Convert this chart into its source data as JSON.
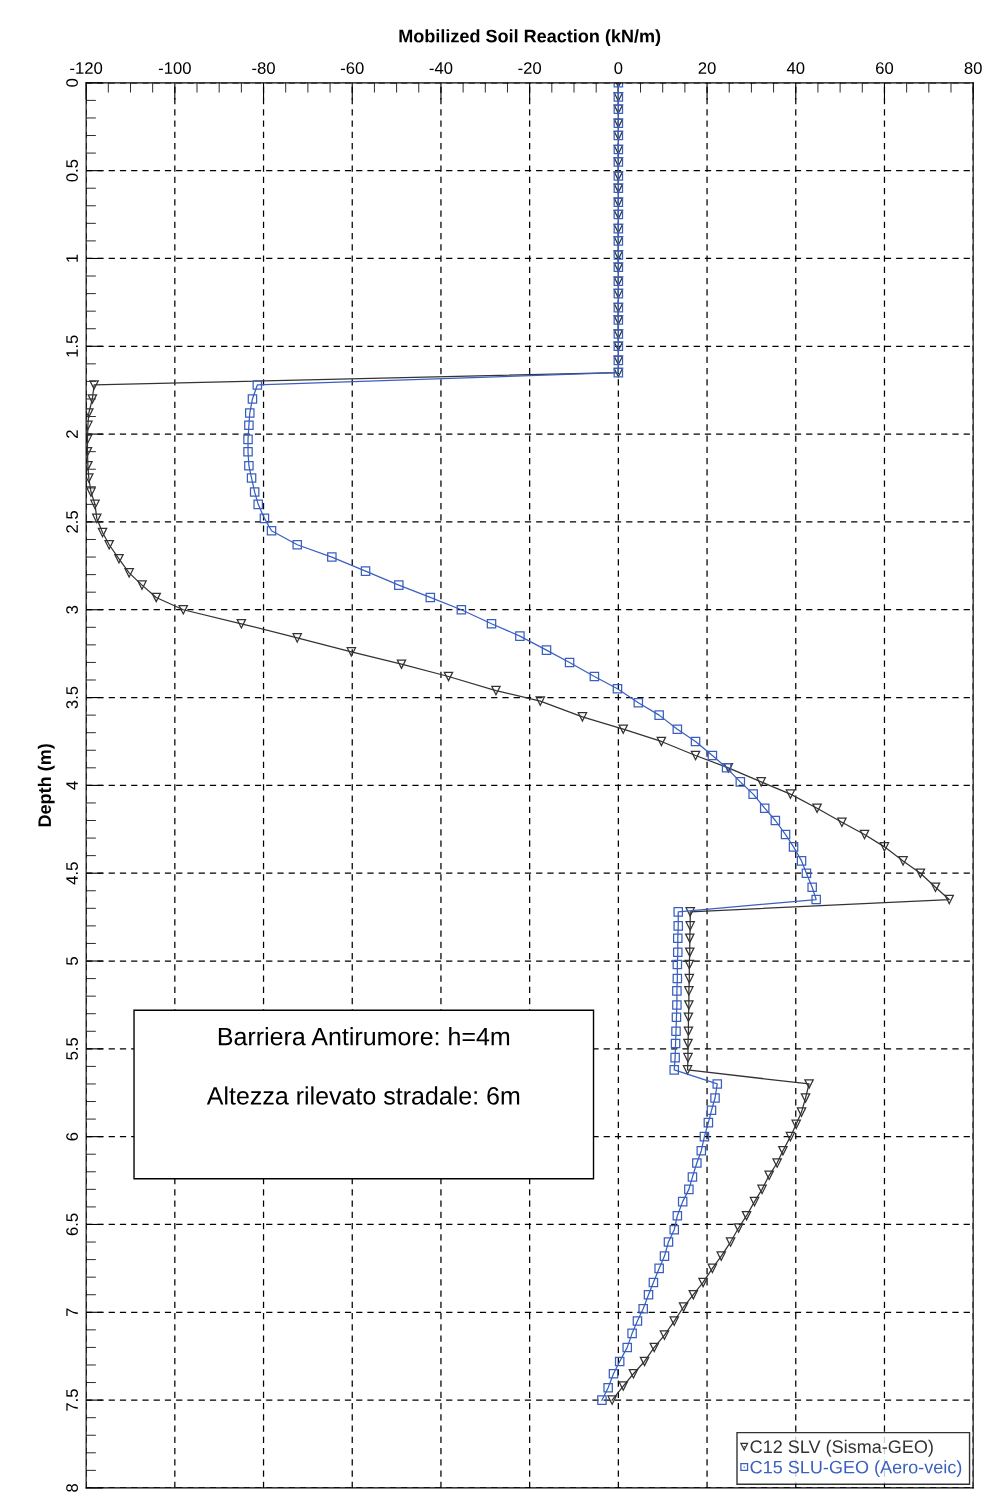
{
  "chart_data": {
    "type": "line",
    "xlabel": "Mobilized Soil Reaction (kN/m)",
    "ylabel": "Depth (m)",
    "xlim": [
      -120,
      80
    ],
    "xticks": [
      -120,
      -100,
      -80,
      -60,
      -40,
      -20,
      0,
      20,
      40,
      60,
      80
    ],
    "ylim": [
      8,
      0
    ],
    "yticks": [
      0,
      0.5,
      1,
      1.5,
      2,
      2.5,
      3,
      3.5,
      4,
      4.5,
      5,
      5.5,
      6,
      6.5,
      7,
      7.5,
      8
    ],
    "grid": true,
    "legend": "bottom right",
    "annotations": [
      "Barriera Antirumore: h=4m",
      "Altezza rilevato stradale: 6m"
    ],
    "series": [
      {
        "name": "C12 SLV (Sisma-GEO)",
        "color": "#333333",
        "marker": "triangle",
        "x": [
          0,
          0,
          0,
          0,
          0,
          0,
          0,
          0,
          0,
          0,
          0,
          0,
          0,
          0,
          0,
          0,
          0,
          0,
          0,
          0,
          0,
          0,
          0,
          -118.2,
          -118.6,
          -119.4,
          -119.6,
          -119.7,
          -119.7,
          -119.6,
          -119.4,
          -118.9,
          -118.0,
          -117.6,
          -116.3,
          -114.8,
          -112.6,
          -110.3,
          -107.4,
          -104.2,
          -98.1,
          -85,
          -72.4,
          -60.2,
          -48.9,
          -38.3,
          -27.6,
          -17.6,
          -8.1,
          1.1,
          9.7,
          17.4,
          24.8,
          32.2,
          38.8,
          44.8,
          50.4,
          55.5,
          60,
          64.2,
          68.1,
          71.5,
          74.6,
          16.2,
          16.2,
          16.1,
          16.1,
          16.0,
          16.0,
          15.9,
          15.9,
          15.8,
          15.8,
          15.7,
          15.7,
          15.6,
          43.0,
          42.2,
          41.3,
          40.1,
          38.8,
          37.1,
          35.8,
          34.0,
          32.4,
          30.7,
          28.9,
          27.1,
          25.3,
          23.2,
          21.2,
          19.1,
          16.9,
          14.7,
          12.6,
          10.4,
          8.1,
          5.9,
          3.4,
          1.1,
          -1.4
        ],
        "values": [
          0,
          0.08,
          0.15,
          0.23,
          0.3,
          0.38,
          0.45,
          0.53,
          0.6,
          0.68,
          0.75,
          0.83,
          0.9,
          0.98,
          1.05,
          1.13,
          1.2,
          1.28,
          1.35,
          1.43,
          1.5,
          1.58,
          1.65,
          1.72,
          1.8,
          1.88,
          1.95,
          2.03,
          2.1,
          2.18,
          2.25,
          2.33,
          2.4,
          2.48,
          2.56,
          2.63,
          2.71,
          2.79,
          2.86,
          2.93,
          3.0,
          3.08,
          3.16,
          3.24,
          3.31,
          3.38,
          3.46,
          3.52,
          3.61,
          3.68,
          3.75,
          3.83,
          3.9,
          3.98,
          4.05,
          4.13,
          4.21,
          4.28,
          4.35,
          4.43,
          4.5,
          4.58,
          4.65,
          4.72,
          4.8,
          4.87,
          4.95,
          5.02,
          5.1,
          5.17,
          5.25,
          5.32,
          5.4,
          5.47,
          5.55,
          5.62,
          5.7,
          5.78,
          5.86,
          5.93,
          6.0,
          6.08,
          6.15,
          6.22,
          6.3,
          6.37,
          6.45,
          6.52,
          6.6,
          6.68,
          6.75,
          6.83,
          6.9,
          6.97,
          7.05,
          7.13,
          7.2,
          7.28,
          7.35,
          7.42,
          7.5
        ]
      },
      {
        "name": "C15 SLU-GEO (Aero-veic)",
        "color": "#3a5fbf",
        "marker": "square",
        "x": [
          0,
          0,
          0,
          0,
          0,
          0,
          0,
          0,
          0,
          0,
          0,
          0,
          0,
          0,
          0,
          0,
          0,
          0,
          0,
          0,
          0,
          0,
          0,
          -81.4,
          -82.5,
          -83.1,
          -83.3,
          -83.5,
          -83.5,
          -83.3,
          -82.7,
          -82,
          -81.2,
          -79.8,
          -78.2,
          -72.4,
          -64.6,
          -57,
          -49.5,
          -42.4,
          -35.4,
          -28.6,
          -22.2,
          -16.2,
          -11.0,
          -5.4,
          -0.2,
          4.5,
          9.2,
          13.3,
          17.4,
          21.2,
          24.4,
          27.5,
          30.4,
          33.0,
          35.4,
          37.7,
          39.5,
          41.3,
          42.4,
          43.7,
          44.6,
          13.5,
          13.5,
          13.4,
          13.4,
          13.3,
          13.3,
          13.2,
          13.2,
          13.1,
          13.0,
          12.9,
          12.8,
          12.6,
          22.3,
          21.8,
          21.0,
          20.3,
          19.4,
          18.7,
          17.7,
          16.7,
          15.9,
          14.5,
          13.3,
          12.6,
          11.3,
          10.4,
          9.2,
          7.9,
          6.8,
          5.6,
          4.3,
          3.1,
          2.0,
          0.3,
          -1.1,
          -2.3,
          -3.7
        ],
        "values": [
          0,
          0.08,
          0.15,
          0.23,
          0.3,
          0.38,
          0.45,
          0.53,
          0.6,
          0.68,
          0.75,
          0.83,
          0.9,
          0.98,
          1.05,
          1.13,
          1.2,
          1.28,
          1.35,
          1.43,
          1.5,
          1.58,
          1.65,
          1.72,
          1.8,
          1.88,
          1.95,
          2.03,
          2.1,
          2.18,
          2.25,
          2.33,
          2.4,
          2.48,
          2.55,
          2.63,
          2.7,
          2.78,
          2.86,
          2.93,
          3.0,
          3.08,
          3.15,
          3.23,
          3.3,
          3.38,
          3.45,
          3.53,
          3.6,
          3.68,
          3.75,
          3.83,
          3.9,
          3.98,
          4.05,
          4.13,
          4.2,
          4.28,
          4.35,
          4.43,
          4.5,
          4.58,
          4.65,
          4.72,
          4.8,
          4.87,
          4.95,
          5.02,
          5.1,
          5.17,
          5.25,
          5.32,
          5.4,
          5.47,
          5.55,
          5.62,
          5.7,
          5.78,
          5.85,
          5.92,
          6.0,
          6.08,
          6.15,
          6.23,
          6.3,
          6.37,
          6.45,
          6.53,
          6.6,
          6.68,
          6.75,
          6.83,
          6.9,
          6.98,
          7.05,
          7.12,
          7.2,
          7.28,
          7.35,
          7.43,
          7.5
        ]
      }
    ]
  }
}
